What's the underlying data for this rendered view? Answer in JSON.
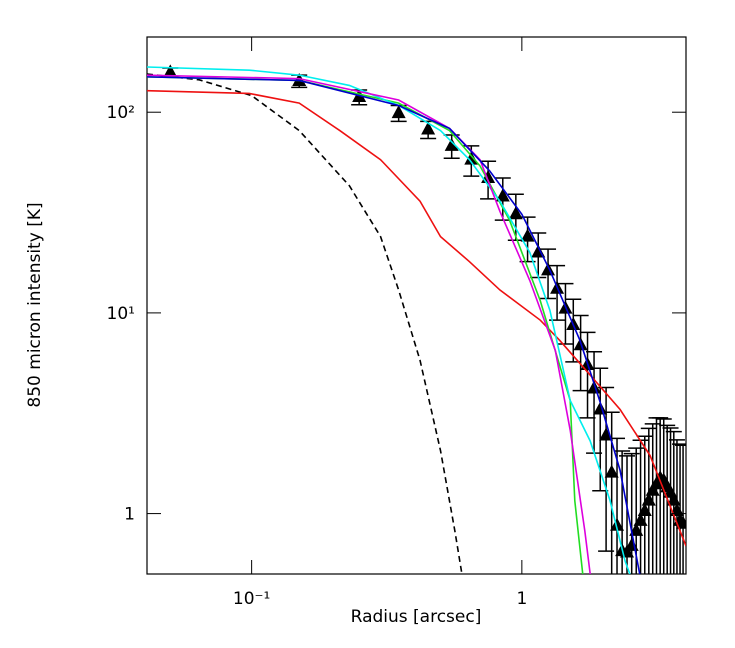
{
  "chart_data": {
    "type": "line",
    "x_label": "Radius [arcsec]",
    "y_label": "850 micron intensity [K]",
    "xscale": "log",
    "yscale": "log",
    "xlim": [
      0.041,
      4.05
    ],
    "ylim": [
      0.5,
      237
    ],
    "xticks": [
      {
        "value": 0.1,
        "label": "10⁻¹"
      },
      1
    ],
    "yticks": [
      1,
      {
        "value": 10,
        "label": "10¹"
      },
      {
        "value": 100,
        "label": "10²"
      }
    ],
    "series": [
      {
        "color": "#000000",
        "marker": "triangle",
        "x": [
          0.05,
          0.15,
          0.25,
          0.35,
          0.45,
          0.55,
          0.65,
          0.75,
          0.85,
          0.95,
          1.05,
          1.15,
          1.25,
          1.35,
          1.45,
          1.55,
          1.65,
          1.75,
          1.85,
          1.95,
          2.05,
          2.15,
          2.25,
          2.35,
          2.45,
          2.55,
          2.65,
          2.75,
          2.85,
          2.95,
          3.05,
          3.15,
          3.25,
          3.35,
          3.45,
          3.55,
          3.65,
          3.75,
          3.85,
          3.95
        ],
        "values": [
          158,
          143,
          119,
          99,
          82,
          68,
          58,
          47,
          38,
          31,
          24,
          20,
          16.3,
          13.2,
          10.5,
          8.7,
          6.9,
          5.5,
          4.2,
          3.3,
          2.45,
          1.6,
          0.87,
          0.65,
          0.64,
          0.69,
          0.82,
          0.92,
          1.03,
          1.16,
          1.3,
          1.4,
          1.5,
          1.46,
          1.35,
          1.27,
          1.16,
          1.03,
          0.92,
          0.89
        ],
        "errors": [
          8,
          10,
          10,
          9,
          8,
          9,
          10,
          10,
          9,
          8,
          6,
          5,
          4.5,
          4,
          3.5,
          3,
          2.8,
          2.5,
          2.2,
          2,
          1.8,
          1.6,
          1.5,
          1.4,
          1.3,
          1.3,
          1.3,
          1.4,
          1.4,
          1.5,
          1.5,
          1.6,
          1.5,
          1.5,
          1.4,
          1.4,
          1.4,
          1.3,
          1.3,
          1.3
        ]
      },
      {
        "color": "#000000",
        "dash": true,
        "x": [
          0.041,
          0.064,
          0.1,
          0.15,
          0.23,
          0.3,
          0.35,
          0.42,
          0.5,
          0.565,
          0.6
        ],
        "values": [
          155,
          145,
          121,
          81,
          43,
          24,
          13,
          5.8,
          2.06,
          0.82,
          0.5
        ]
      },
      {
        "color": "#ee1111",
        "x": [
          0.041,
          0.098,
          0.15,
          0.212,
          0.3,
          0.42,
          0.5,
          0.64,
          0.83,
          1.17,
          1.38,
          1.79,
          2.31,
          2.98,
          4.05
        ],
        "values": [
          128,
          124,
          111,
          81,
          58,
          36,
          24,
          18,
          13,
          9.2,
          7.3,
          4.9,
          3.3,
          1.95,
          0.69
        ]
      },
      {
        "color": "#22dd22",
        "x": [
          0.041,
          0.15,
          0.35,
          0.54,
          0.7,
          0.9,
          1.17,
          1.51,
          1.57,
          1.68
        ],
        "values": [
          150,
          144,
          111,
          81,
          54,
          29,
          11.5,
          3.66,
          1.16,
          0.5
        ]
      },
      {
        "color": "#00eeee",
        "x": [
          0.041,
          0.098,
          0.15,
          0.23,
          0.35,
          0.5,
          0.64,
          0.83,
          1.07,
          1.27,
          1.51,
          1.79,
          2.12,
          2.41,
          2.51
        ],
        "values": [
          168,
          162,
          153,
          136,
          108,
          81,
          58,
          36,
          20,
          10.3,
          3.66,
          2.3,
          1.16,
          0.58,
          0.5
        ]
      },
      {
        "color": "#dd00dd",
        "x": [
          0.041,
          0.15,
          0.35,
          0.54,
          0.7,
          0.83,
          1.07,
          1.33,
          1.51,
          1.71,
          1.79
        ],
        "values": [
          153,
          147,
          115,
          83,
          58,
          32,
          14.5,
          6.5,
          2.6,
          0.82,
          0.5
        ]
      },
      {
        "color": "#0000cc",
        "x": [
          0.041,
          0.15,
          0.35,
          0.54,
          0.76,
          1.0,
          1.27,
          1.64,
          1.94,
          2.31,
          2.73
        ],
        "values": [
          150,
          144,
          108,
          83,
          51,
          31,
          16.3,
          7.3,
          3.66,
          1.64,
          0.5
        ]
      }
    ]
  }
}
